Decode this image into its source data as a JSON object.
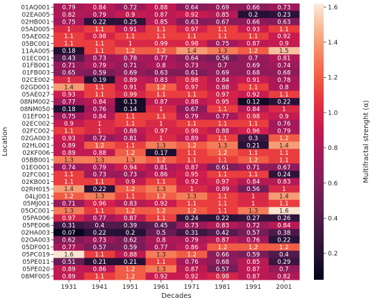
{
  "chart_data": {
    "type": "heatmap",
    "xlabel": "Decades",
    "ylabel": "Location",
    "colorbar_label": "Multifractal strenght (α)",
    "colorbar_range": [
      0.05,
      1.62
    ],
    "colorbar_ticks": [
      0.2,
      0.4,
      0.6,
      0.8,
      1.0,
      1.2,
      1.4,
      1.6
    ],
    "colorbar_tick_labels": [
      "0.2",
      "0.4",
      "0.6",
      "0.8",
      "1.0",
      "1.2",
      "1.4",
      "1.6"
    ],
    "colormap": "rocket",
    "grid": false,
    "x_categories": [
      "1931",
      "1941",
      "1951",
      "1961",
      "1971",
      "1981",
      "1991",
      "2001"
    ],
    "y_categories": [
      "01AQ001",
      "02EA005",
      "02HB001",
      "05AD005",
      "05AE002",
      "05BC001",
      "11AA005",
      "01EC001",
      "01FB001",
      "01FB003",
      "02CE002",
      "02GD001",
      "05AE027",
      "08NM002",
      "08NM050",
      "01EF001",
      "02EC002",
      "02FC002",
      "02GA003",
      "02HL001",
      "02KF006",
      "05BB001",
      "01EO001",
      "02FC001",
      "02KB001",
      "02RH015",
      "04LJ001",
      "05MJ001",
      "05OC001",
      "05PA006",
      "05PE006",
      "02HA003",
      "02OA003",
      "05DF001",
      "05PC019",
      "05PE011",
      "05PE020",
      "08MF005"
    ],
    "values": [
      [
        "0.79",
        "0.84",
        "0.72",
        "0.88",
        "0.64",
        "0.69",
        "0.66",
        "0.73"
      ],
      [
        "0.82",
        "0.79",
        "0.9",
        "0.87",
        "0.92",
        "0.85",
        "0.2",
        "0.23"
      ],
      [
        "0.75",
        "0.22",
        "0.25",
        "0.85",
        "0.63",
        "0.67",
        "0.66",
        "0.63"
      ],
      [
        "1",
        "1.1",
        "0.91",
        "1.1",
        "0.97",
        "1.1",
        "0.93",
        "1.1"
      ],
      [
        "1.1",
        "0.98",
        "1.1",
        "1.1",
        "1.1",
        "1.1",
        "1.1",
        "0.92"
      ],
      [
        "1.1",
        "1.1",
        "1",
        "0.99",
        "0.98",
        "0.75",
        "0.87",
        "0.9"
      ],
      [
        "0.18",
        "1.1",
        "1.2",
        "1.2",
        "1.4",
        "1.3",
        "1.2",
        "1.5"
      ],
      [
        "0.43",
        "0.73",
        "0.78",
        "0.77",
        "0.64",
        "0.56",
        "0.7",
        "0.81"
      ],
      [
        "0.71",
        "0.79",
        "0.71",
        "0.8",
        "0.73",
        "0.7",
        "0.69",
        "0.74"
      ],
      [
        "0.65",
        "0.59",
        "0.69",
        "0.63",
        "0.61",
        "0.69",
        "0.68",
        "0.68"
      ],
      [
        "1",
        "0.19",
        "0.89",
        "0.83",
        "0.98",
        "0.84",
        "0.91",
        "0.78"
      ],
      [
        "1.4",
        "1.1",
        "0.91",
        "1.2",
        "0.97",
        "0.88",
        "1.1",
        "0.8"
      ],
      [
        "0.93",
        "1.1",
        "0.99",
        "1.1",
        "1.1",
        "0.97",
        "0.92",
        "1.1"
      ],
      [
        "0.77",
        "0.84",
        "0.13",
        "0.87",
        "0.88",
        "0.95",
        "0.12",
        "0.22"
      ],
      [
        "0.18",
        "0.76",
        "0.14",
        "1",
        "0.67",
        "1.1",
        "0.84",
        "1"
      ],
      [
        "0.75",
        "0.84",
        "1.1",
        "1.1",
        "0.79",
        "0.77",
        "0.98",
        "0.9"
      ],
      [
        "0.9",
        "1",
        "1.1",
        "1",
        "1.1",
        "1.1",
        "1.1",
        "0.76"
      ],
      [
        "1.1",
        "1",
        "0.88",
        "0.97",
        "0.98",
        "0.88",
        "0.96",
        "0.79"
      ],
      [
        "0.93",
        "0.72",
        "0.81",
        "1",
        "0.89",
        "1.1",
        "0.3",
        "1.2"
      ],
      [
        "0.89",
        "1.2",
        "1.1",
        "1.3",
        "1.2",
        "1.3",
        "0.21",
        "1.4"
      ],
      [
        "0.89",
        "0.88",
        "1.2",
        "0.17",
        "1.1",
        "1.2",
        "1.1",
        "1.1"
      ],
      [
        "1.3",
        "1.3",
        "1.3",
        "1.2",
        "1.1",
        "1.1",
        "1.2",
        "1.1"
      ],
      [
        "0.74",
        "0.79",
        "0.94",
        "0.81",
        "0.87",
        "0.61",
        "0.71",
        "0.67"
      ],
      [
        "1.1",
        "0.73",
        "0.73",
        "0.86",
        "0.95",
        "1.1",
        "1.1",
        "0.24"
      ],
      [
        "1.1",
        "1.1",
        "0.9",
        "1.1",
        "0.92",
        "0.97",
        "0.84",
        "0.83"
      ],
      [
        "1.4",
        "0.22",
        "1.2",
        "1.3",
        "1",
        "0.89",
        "0.56",
        "1"
      ],
      [
        "1.2",
        "1.3",
        "1.1",
        "1.2",
        "1.3",
        "1.1",
        "1",
        "1.4"
      ],
      [
        "0.71",
        "0.96",
        "0.83",
        "0.92",
        "1.1",
        "1.1",
        "1",
        "1.1"
      ],
      [
        "1.3",
        "1.1",
        "1.2",
        "1.2",
        "1.2",
        "1.1",
        "1.3",
        "1.6"
      ],
      [
        "0.97",
        "0.77",
        "0.87",
        "1.1",
        "0.24",
        "0.22",
        "0.27",
        "0.26"
      ],
      [
        "0.31",
        "0.4",
        "0.39",
        "0.45",
        "0.73",
        "0.83",
        "0.72",
        "0.84"
      ],
      [
        "0.07",
        "0.22",
        "0.2",
        "0.5",
        "0.31",
        "0.42",
        "0.57",
        "0.38"
      ],
      [
        "0.62",
        "0.73",
        "0.62",
        "0.8",
        "0.79",
        "0.87",
        "0.76",
        "0.22"
      ],
      [
        "0.77",
        "0.57",
        "0.59",
        "0.77",
        "0.86",
        "1.2",
        "1.2",
        "1.2"
      ],
      [
        "1.6",
        "1.1",
        "0.88",
        "1.3",
        "1.2",
        "0.66",
        "0.59",
        "0.4"
      ],
      [
        "0.51",
        "0.21",
        "0.21",
        "1.1",
        "0.76",
        "0.68",
        "0.85",
        "0.29"
      ],
      [
        "0.89",
        "0.86",
        "1.2",
        "1.3",
        "0.87",
        "0.57",
        "0.87",
        "0.7"
      ],
      [
        "0.89",
        "1.1",
        "1.2",
        "0.92",
        "0.92",
        "0.98",
        "0.87",
        "0.82"
      ]
    ]
  }
}
